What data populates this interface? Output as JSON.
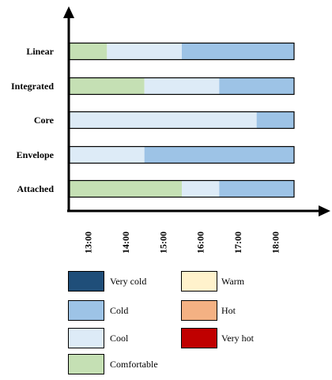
{
  "chart_data": {
    "type": "bar",
    "orientation": "horizontal",
    "stacked": true,
    "categories": [
      "Linear",
      "Integrated",
      "Core",
      "Envelope",
      "Attached"
    ],
    "x_ticks": [
      "13:00",
      "14:00",
      "15:00",
      "16:00",
      "17:00",
      "18:00"
    ],
    "xlim": [
      "12:30",
      "18:30"
    ],
    "segments": [
      [
        {
          "start": "12:30",
          "end": "13:30",
          "level": "Comfortable"
        },
        {
          "start": "13:30",
          "end": "15:30",
          "level": "Cool"
        },
        {
          "start": "15:30",
          "end": "18:30",
          "level": "Cold"
        }
      ],
      [
        {
          "start": "12:30",
          "end": "14:30",
          "level": "Comfortable"
        },
        {
          "start": "14:30",
          "end": "16:30",
          "level": "Cool"
        },
        {
          "start": "16:30",
          "end": "18:30",
          "level": "Cold"
        }
      ],
      [
        {
          "start": "12:30",
          "end": "17:30",
          "level": "Cool"
        },
        {
          "start": "17:30",
          "end": "18:30",
          "level": "Cold"
        }
      ],
      [
        {
          "start": "12:30",
          "end": "14:30",
          "level": "Cool"
        },
        {
          "start": "14:30",
          "end": "18:30",
          "level": "Cold"
        }
      ],
      [
        {
          "start": "12:30",
          "end": "15:30",
          "level": "Comfortable"
        },
        {
          "start": "15:30",
          "end": "16:30",
          "level": "Cool"
        },
        {
          "start": "16:30",
          "end": "18:30",
          "level": "Cold"
        }
      ]
    ],
    "legend": [
      {
        "label": "Very cold",
        "color": "#1f4e79"
      },
      {
        "label": "Warm",
        "color": "#fff2cc"
      },
      {
        "label": "Cold",
        "color": "#9dc3e6"
      },
      {
        "label": "Hot",
        "color": "#f4b183"
      },
      {
        "label": "Cool",
        "color": "#ddebf7"
      },
      {
        "label": "Very hot",
        "color": "#c00000"
      },
      {
        "label": "Comfortable",
        "color": "#c5e0b4"
      }
    ],
    "legend_position": "bottom",
    "grid": false
  }
}
